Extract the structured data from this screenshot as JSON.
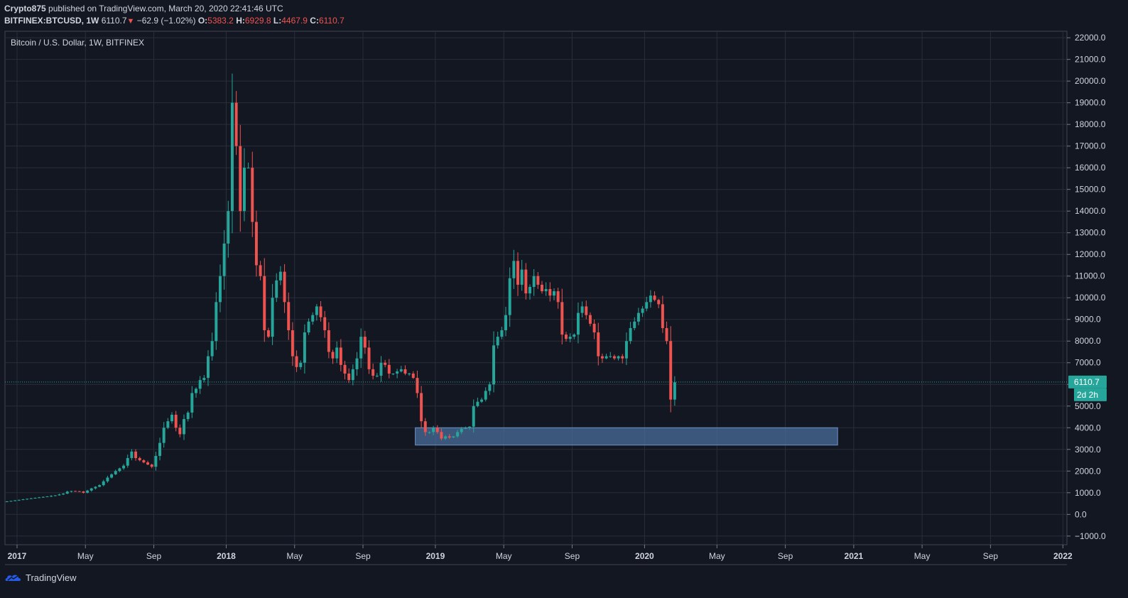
{
  "header": {
    "author": "Crypto875",
    "published_text": "published on TradingView.com, March 20, 2020 22:41:46 UTC",
    "symbol": "BITFINEX:BTCUSD, 1W",
    "last": "6110.7",
    "change_arrow": "▼",
    "change": "−62.9 (−1.02%)",
    "o_label": "O:",
    "o_value": "5383.2",
    "h_label": "H:",
    "h_value": "6929.8",
    "l_label": "L:",
    "l_value": "4467.9",
    "c_label": "C:",
    "c_value": "6110.7"
  },
  "footer": {
    "brand": "TradingView"
  },
  "colors": {
    "up": "#26a69a",
    "down": "#ef5350",
    "background": "#131722",
    "grid": "#2a2e39",
    "zone": "#4a6e9b"
  },
  "chart_data": {
    "type": "candlestick",
    "title": "Bitcoin / U.S. Dollar, 1W, BITFINEX",
    "ylim": [
      -1400,
      22300
    ],
    "y_ticks": [
      -1000,
      0,
      1000,
      2000,
      3000,
      4000,
      5000,
      6000,
      7000,
      8000,
      9000,
      10000,
      11000,
      12000,
      13000,
      14000,
      15000,
      16000,
      17000,
      18000,
      19000,
      20000,
      21000,
      22000
    ],
    "y_tick_labels": [
      "−1000.0",
      "0.0",
      "1000.0",
      "2000.0",
      "3000.0",
      "4000.0",
      "5000.0",
      "6000.0",
      "7000.0",
      "8000.0",
      "9000.0",
      "10000.0",
      "11000.0",
      "12000.0",
      "13000.0",
      "14000.0",
      "15000.0",
      "16000.0",
      "17000.0",
      "18000.0",
      "19000.0",
      "20000.0",
      "21000.0",
      "22000.0"
    ],
    "x_labels": [
      {
        "label": "2017",
        "week": 3,
        "bold": true
      },
      {
        "label": "May",
        "week": 20
      },
      {
        "label": "Sep",
        "week": 37
      },
      {
        "label": "2018",
        "week": 55,
        "bold": true
      },
      {
        "label": "May",
        "week": 72
      },
      {
        "label": "Sep",
        "week": 89
      },
      {
        "label": "2019",
        "week": 107,
        "bold": true
      },
      {
        "label": "May",
        "week": 124
      },
      {
        "label": "Sep",
        "week": 141
      },
      {
        "label": "2020",
        "week": 159,
        "bold": true
      },
      {
        "label": "May",
        "week": 177
      },
      {
        "label": "Sep",
        "week": 194
      },
      {
        "label": "2021",
        "week": 211,
        "bold": true
      },
      {
        "label": "May",
        "week": 228
      },
      {
        "label": "Sep",
        "week": 245
      },
      {
        "label": "2022",
        "week": 263,
        "bold": true
      }
    ],
    "last_price": 6110.7,
    "last_price_label": "6110.7",
    "countdown_label": "2d 2h",
    "support_zone": {
      "from_week": 102,
      "to_week": 207,
      "low": 3200,
      "high": 4000
    },
    "close_points": [
      [
        0,
        600
      ],
      [
        5,
        720
      ],
      [
        10,
        830
      ],
      [
        12,
        880
      ],
      [
        14,
        960
      ],
      [
        15,
        1050
      ],
      [
        16,
        1080
      ],
      [
        18,
        1060
      ],
      [
        19,
        1000
      ],
      [
        20,
        1100
      ],
      [
        21,
        1200
      ],
      [
        23,
        1350
      ],
      [
        25,
        1700
      ],
      [
        27,
        2000
      ],
      [
        29,
        2250
      ],
      [
        30,
        2600
      ],
      [
        31,
        2900
      ],
      [
        32,
        2600
      ],
      [
        33,
        2500
      ],
      [
        34,
        2400
      ],
      [
        36,
        2200
      ],
      [
        37,
        2700
      ],
      [
        38,
        3300
      ],
      [
        39,
        4000
      ],
      [
        40,
        4300
      ],
      [
        41,
        4600
      ],
      [
        42,
        4000
      ],
      [
        43,
        3700
      ],
      [
        44,
        4400
      ],
      [
        45,
        4700
      ],
      [
        46,
        5600
      ],
      [
        47,
        5800
      ],
      [
        48,
        6200
      ],
      [
        49,
        6300
      ],
      [
        50,
        7300
      ],
      [
        51,
        8000
      ],
      [
        52,
        9800
      ],
      [
        53,
        11000
      ],
      [
        54,
        12500
      ],
      [
        55,
        14000
      ],
      [
        56,
        19000
      ],
      [
        57,
        17000
      ],
      [
        58,
        14000
      ],
      [
        59,
        16000
      ],
      [
        60,
        16000
      ],
      [
        61,
        13500
      ],
      [
        62,
        11500
      ],
      [
        63,
        11000
      ],
      [
        64,
        8500
      ],
      [
        65,
        8200
      ],
      [
        66,
        10000
      ],
      [
        67,
        10800
      ],
      [
        68,
        11200
      ],
      [
        69,
        9800
      ],
      [
        70,
        8500
      ],
      [
        71,
        7300
      ],
      [
        72,
        6800
      ],
      [
        73,
        7000
      ],
      [
        74,
        8400
      ],
      [
        75,
        8900
      ],
      [
        76,
        9200
      ],
      [
        77,
        9600
      ],
      [
        78,
        9100
      ],
      [
        79,
        8500
      ],
      [
        80,
        7500
      ],
      [
        81,
        7200
      ],
      [
        82,
        7700
      ],
      [
        83,
        6900
      ],
      [
        84,
        6500
      ],
      [
        85,
        6200
      ],
      [
        86,
        6700
      ],
      [
        87,
        7200
      ],
      [
        88,
        8200
      ],
      [
        89,
        7700
      ],
      [
        90,
        6700
      ],
      [
        91,
        6400
      ],
      [
        92,
        6400
      ],
      [
        93,
        7000
      ],
      [
        94,
        6900
      ],
      [
        95,
        6500
      ],
      [
        96,
        6500
      ],
      [
        97,
        6600
      ],
      [
        98,
        6700
      ],
      [
        99,
        6500
      ],
      [
        100,
        6500
      ],
      [
        101,
        6300
      ],
      [
        102,
        5600
      ],
      [
        103,
        4300
      ],
      [
        104,
        3800
      ],
      [
        105,
        3800
      ],
      [
        106,
        4000
      ],
      [
        107,
        3800
      ],
      [
        108,
        3500
      ],
      [
        109,
        3600
      ],
      [
        110,
        3550
      ],
      [
        111,
        3600
      ],
      [
        112,
        3800
      ],
      [
        113,
        3950
      ],
      [
        114,
        4000
      ],
      [
        115,
        4050
      ],
      [
        116,
        5000
      ],
      [
        117,
        5200
      ],
      [
        118,
        5300
      ],
      [
        119,
        5700
      ],
      [
        120,
        6000
      ],
      [
        121,
        7800
      ],
      [
        122,
        8200
      ],
      [
        123,
        8500
      ],
      [
        124,
        9200
      ],
      [
        125,
        10900
      ],
      [
        126,
        11700
      ],
      [
        127,
        10600
      ],
      [
        128,
        11300
      ],
      [
        129,
        10200
      ],
      [
        130,
        10500
      ],
      [
        131,
        11000
      ],
      [
        132,
        10600
      ],
      [
        133,
        10300
      ],
      [
        134,
        10400
      ],
      [
        135,
        10100
      ],
      [
        136,
        10300
      ],
      [
        137,
        9800
      ],
      [
        138,
        8300
      ],
      [
        139,
        8100
      ],
      [
        140,
        8200
      ],
      [
        141,
        8300
      ],
      [
        142,
        9300
      ],
      [
        143,
        9600
      ],
      [
        144,
        9200
      ],
      [
        145,
        8800
      ],
      [
        146,
        8400
      ],
      [
        147,
        7300
      ],
      [
        148,
        7200
      ],
      [
        149,
        7300
      ],
      [
        150,
        7300
      ],
      [
        151,
        7200
      ],
      [
        152,
        7300
      ],
      [
        153,
        7200
      ],
      [
        154,
        8000
      ],
      [
        155,
        8600
      ],
      [
        156,
        8900
      ],
      [
        157,
        9300
      ],
      [
        158,
        9500
      ],
      [
        159,
        9800
      ],
      [
        160,
        10100
      ],
      [
        161,
        9900
      ],
      [
        162,
        9700
      ],
      [
        163,
        8600
      ],
      [
        164,
        8000
      ],
      [
        165,
        5300
      ],
      [
        166,
        6100
      ]
    ]
  }
}
